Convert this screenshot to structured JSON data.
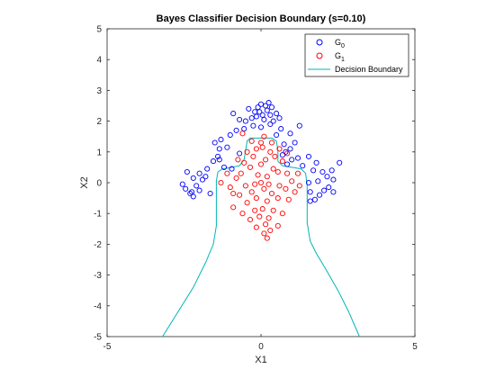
{
  "chart_data": {
    "type": "scatter",
    "title": "Bayes Classifier Decision Boundary (s=0.10)",
    "xlabel": "X1",
    "ylabel": "X2",
    "xlim": [
      -5,
      5
    ],
    "ylim": [
      -5,
      5
    ],
    "xticks": [
      -5,
      0,
      5
    ],
    "yticks": [
      -5,
      -4,
      -3,
      -2,
      -1,
      0,
      1,
      2,
      3,
      4,
      5
    ],
    "grid": false,
    "legend_location": "top-right",
    "colors": {
      "g0": "#0000ff",
      "g1": "#ff0000",
      "boundary": "#00b5b5"
    },
    "legend": [
      {
        "label": "G",
        "sub": "0",
        "marker": "circle",
        "color": "#0000ff"
      },
      {
        "label": "G",
        "sub": "1",
        "marker": "circle",
        "color": "#ff0000"
      },
      {
        "label": "Decision Boundary",
        "marker": "line",
        "color": "#00b5b5"
      }
    ],
    "series": [
      {
        "name": "G0",
        "marker": "circle",
        "color": "#0000ff",
        "points": [
          [
            0.0,
            2.55
          ],
          [
            0.15,
            2.5
          ],
          [
            -0.1,
            2.45
          ],
          [
            0.2,
            2.35
          ],
          [
            0.3,
            2.2
          ],
          [
            -0.2,
            2.3
          ],
          [
            0.05,
            2.2
          ],
          [
            -0.3,
            2.1
          ],
          [
            0.4,
            2.0
          ],
          [
            -0.5,
            2.0
          ],
          [
            0.1,
            2.05
          ],
          [
            -0.7,
            2.05
          ],
          [
            -0.9,
            2.25
          ],
          [
            0.6,
            2.1
          ],
          [
            -0.15,
            2.15
          ],
          [
            0.25,
            2.6
          ],
          [
            -0.05,
            2.3
          ],
          [
            0.35,
            2.45
          ],
          [
            -0.4,
            2.4
          ],
          [
            0.5,
            2.25
          ],
          [
            1.25,
            1.85
          ],
          [
            -0.55,
            1.75
          ],
          [
            0.65,
            1.75
          ],
          [
            -0.8,
            1.7
          ],
          [
            0.95,
            1.6
          ],
          [
            -1.0,
            1.55
          ],
          [
            0.5,
            1.55
          ],
          [
            0.3,
            1.9
          ],
          [
            -0.25,
            1.85
          ],
          [
            0.0,
            1.8
          ],
          [
            1.1,
            1.3
          ],
          [
            -1.3,
            1.4
          ],
          [
            0.75,
            1.25
          ],
          [
            -1.1,
            1.15
          ],
          [
            0.95,
            1.1
          ],
          [
            -1.35,
            1.1
          ],
          [
            0.8,
            1.0
          ],
          [
            -0.7,
            0.95
          ],
          [
            -1.5,
            1.3
          ],
          [
            0.7,
            0.9
          ],
          [
            1.0,
            0.75
          ],
          [
            -1.35,
            0.75
          ],
          [
            1.55,
            0.85
          ],
          [
            -1.55,
            0.7
          ],
          [
            0.85,
            0.6
          ],
          [
            -1.2,
            0.5
          ],
          [
            -1.4,
            0.85
          ],
          [
            1.2,
            0.8
          ],
          [
            -0.95,
            0.45
          ],
          [
            1.35,
            0.55
          ],
          [
            -1.75,
            0.45
          ],
          [
            1.7,
            0.4
          ],
          [
            -2.0,
            0.3
          ],
          [
            2.0,
            0.35
          ],
          [
            -1.9,
            0.1
          ],
          [
            -2.2,
            0.15
          ],
          [
            1.55,
            0.0
          ],
          [
            2.15,
            0.2
          ],
          [
            1.85,
            0.05
          ],
          [
            2.35,
            0.1
          ],
          [
            -2.4,
            0.35
          ],
          [
            2.55,
            0.65
          ],
          [
            -2.1,
            -0.1
          ],
          [
            1.6,
            -0.3
          ],
          [
            -2.45,
            -0.2
          ],
          [
            1.75,
            -0.55
          ],
          [
            -2.25,
            -0.3
          ],
          [
            2.35,
            -0.3
          ],
          [
            -2.2,
            -0.45
          ],
          [
            1.6,
            -0.6
          ],
          [
            -2.0,
            -0.25
          ],
          [
            2.05,
            -0.25
          ],
          [
            -2.55,
            -0.05
          ],
          [
            2.2,
            -0.15
          ],
          [
            -1.65,
            -0.35
          ],
          [
            2.3,
            0.4
          ],
          [
            -2.3,
            -0.35
          ],
          [
            1.9,
            -0.4
          ],
          [
            1.8,
            0.65
          ],
          [
            -1.8,
            0.2
          ]
        ]
      },
      {
        "name": "G1",
        "marker": "circle",
        "color": "#ff0000",
        "points": [
          [
            -0.6,
            1.6
          ],
          [
            0.1,
            1.5
          ],
          [
            -0.3,
            1.35
          ],
          [
            0.35,
            1.3
          ],
          [
            0.6,
            1.1
          ],
          [
            -0.15,
            1.1
          ],
          [
            -0.45,
            1.0
          ],
          [
            0.05,
            1.15
          ],
          [
            0.3,
            1.0
          ],
          [
            -0.25,
            0.85
          ],
          [
            0.45,
            0.85
          ],
          [
            0.15,
            0.75
          ],
          [
            -0.55,
            0.65
          ],
          [
            0.7,
            0.7
          ],
          [
            0.0,
            0.6
          ],
          [
            -0.35,
            0.5
          ],
          [
            0.4,
            0.45
          ],
          [
            0.55,
            0.35
          ],
          [
            -0.65,
            0.3
          ],
          [
            0.85,
            0.3
          ],
          [
            0.2,
            0.2
          ],
          [
            -0.1,
            0.25
          ],
          [
            -0.8,
            0.15
          ],
          [
            1.0,
            0.05
          ],
          [
            0.0,
            0.0
          ],
          [
            -0.2,
            -0.05
          ],
          [
            0.25,
            -0.05
          ],
          [
            0.6,
            -0.1
          ],
          [
            -0.5,
            -0.1
          ],
          [
            0.8,
            -0.2
          ],
          [
            -1.0,
            -0.15
          ],
          [
            0.1,
            -0.2
          ],
          [
            -0.3,
            -0.3
          ],
          [
            0.35,
            -0.35
          ],
          [
            1.1,
            -0.3
          ],
          [
            -0.7,
            -0.4
          ],
          [
            0.55,
            -0.5
          ],
          [
            -0.15,
            -0.5
          ],
          [
            0.9,
            -0.55
          ],
          [
            0.2,
            -0.6
          ],
          [
            -0.45,
            -0.65
          ],
          [
            -0.9,
            -0.8
          ],
          [
            0.05,
            -0.85
          ],
          [
            -0.2,
            -0.9
          ],
          [
            0.4,
            -0.9
          ],
          [
            -0.6,
            -1.0
          ],
          [
            0.7,
            -1.0
          ],
          [
            -0.05,
            -1.1
          ],
          [
            0.25,
            -1.15
          ],
          [
            -0.35,
            -1.2
          ],
          [
            0.15,
            -1.35
          ],
          [
            0.55,
            -1.4
          ],
          [
            -0.15,
            -1.45
          ],
          [
            0.3,
            -1.55
          ],
          [
            0.1,
            -1.65
          ],
          [
            0.2,
            -1.8
          ],
          [
            -1.1,
            0.3
          ],
          [
            1.25,
            -0.1
          ],
          [
            -0.75,
            0.75
          ],
          [
            0.85,
            0.95
          ],
          [
            -1.3,
            0.0
          ],
          [
            1.2,
            0.3
          ],
          [
            -0.9,
            -0.35
          ],
          [
            0.0,
            1.3
          ]
        ]
      }
    ],
    "boundary_paths": [
      [
        [
          -3.2,
          -5
        ],
        [
          -2.7,
          -4.2
        ],
        [
          -2.2,
          -3.4
        ],
        [
          -1.8,
          -2.6
        ],
        [
          -1.55,
          -2.0
        ],
        [
          -1.45,
          -1.4
        ],
        [
          -1.45,
          -0.6
        ],
        [
          -1.45,
          0.05
        ],
        [
          -1.4,
          0.35
        ],
        [
          -1.25,
          0.45
        ],
        [
          -0.95,
          0.5
        ],
        [
          -0.7,
          0.55
        ],
        [
          -0.55,
          0.75
        ],
        [
          -0.5,
          1.05
        ],
        [
          -0.45,
          1.35
        ],
        [
          -0.35,
          1.45
        ],
        [
          0.35,
          1.45
        ],
        [
          0.5,
          1.35
        ],
        [
          0.55,
          1.05
        ],
        [
          0.55,
          0.7
        ],
        [
          0.7,
          0.55
        ],
        [
          1.0,
          0.5
        ],
        [
          1.3,
          0.45
        ],
        [
          1.45,
          0.3
        ],
        [
          1.5,
          -0.1
        ],
        [
          1.5,
          -0.7
        ],
        [
          1.5,
          -1.3
        ],
        [
          1.6,
          -1.9
        ],
        [
          1.8,
          -2.3
        ],
        [
          2.1,
          -2.8
        ],
        [
          2.5,
          -3.5
        ],
        [
          2.85,
          -4.2
        ],
        [
          3.2,
          -5
        ]
      ]
    ]
  }
}
